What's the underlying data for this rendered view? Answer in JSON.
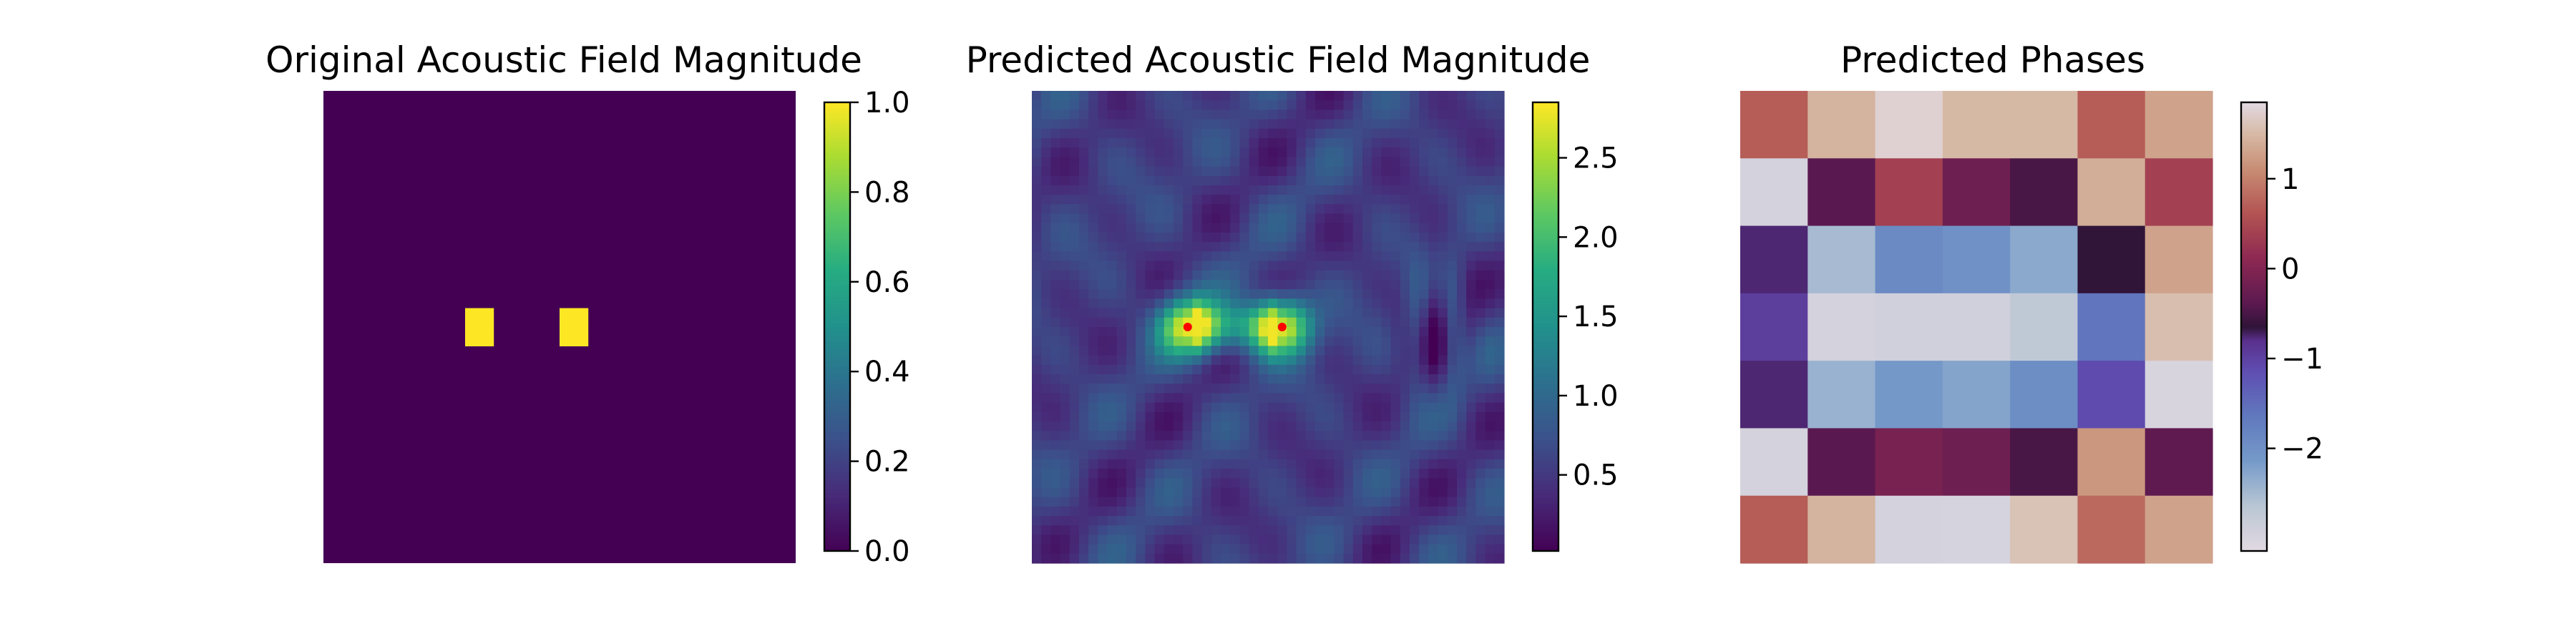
{
  "chart_data": [
    {
      "type": "heatmap",
      "title": "Original Acoustic Field Magnitude",
      "grid": false,
      "axes_visible": false,
      "grid_size": 50,
      "colormap": "viridis",
      "colorbar": {
        "range": [
          0.0,
          1.0
        ],
        "ticks": [
          0.0,
          0.2,
          0.4,
          0.6,
          0.8,
          1.0
        ],
        "tick_labels": [
          "0.0",
          "0.2",
          "0.4",
          "0.6",
          "0.8",
          "1.0"
        ]
      },
      "background_value": 0.0,
      "focal_spots": [
        {
          "x": 16.5,
          "y": 25,
          "radius": 2,
          "value": 1.0
        },
        {
          "x": 26.5,
          "y": 25,
          "radius": 2,
          "value": 1.0
        }
      ]
    },
    {
      "type": "heatmap",
      "title": "Predicted Acoustic Field Magnitude",
      "grid": false,
      "axes_visible": false,
      "grid_size": 50,
      "colormap": "viridis",
      "colorbar": {
        "range": [
          0.02,
          2.85
        ],
        "ticks": [
          0.5,
          1.0,
          1.5,
          2.0,
          2.5
        ],
        "tick_labels": [
          "0.5",
          "1.0",
          "1.5",
          "2.0",
          "2.5"
        ]
      },
      "background_value": 0.75,
      "peak_value": 2.8,
      "focal_markers": [
        {
          "x": 16.5,
          "y": 25,
          "color": "#ff0000"
        },
        {
          "x": 26.5,
          "y": 25,
          "color": "#ff0000"
        }
      ]
    },
    {
      "type": "heatmap",
      "title": "Predicted Phases",
      "grid": false,
      "axes_visible": false,
      "rows": 7,
      "cols": 7,
      "colormap": "twilight",
      "colorbar": {
        "range": [
          -3.1416,
          1.85
        ],
        "ticks": [
          -2,
          -1,
          0,
          1
        ],
        "tick_labels": [
          "−2",
          "−1",
          "0",
          "1"
        ]
      },
      "values": [
        [
          0.7,
          1.45,
          1.75,
          1.5,
          1.5,
          0.7,
          1.3
        ],
        [
          -2.95,
          -0.4,
          0.4,
          -0.2,
          -0.5,
          1.4,
          0.4
        ],
        [
          -0.75,
          -2.5,
          -1.9,
          -2.0,
          -2.3,
          -0.65,
          1.3
        ],
        [
          -0.95,
          -2.95,
          -2.9,
          -2.9,
          -2.7,
          -1.6,
          1.55
        ],
        [
          -0.75,
          -2.4,
          -2.1,
          -2.25,
          -1.95,
          -1.1,
          -3.0
        ],
        [
          -2.95,
          -0.4,
          -0.1,
          -0.2,
          -0.5,
          1.2,
          -0.35
        ],
        [
          0.7,
          1.45,
          -2.95,
          -2.98,
          1.6,
          0.8,
          1.3
        ]
      ]
    }
  ]
}
